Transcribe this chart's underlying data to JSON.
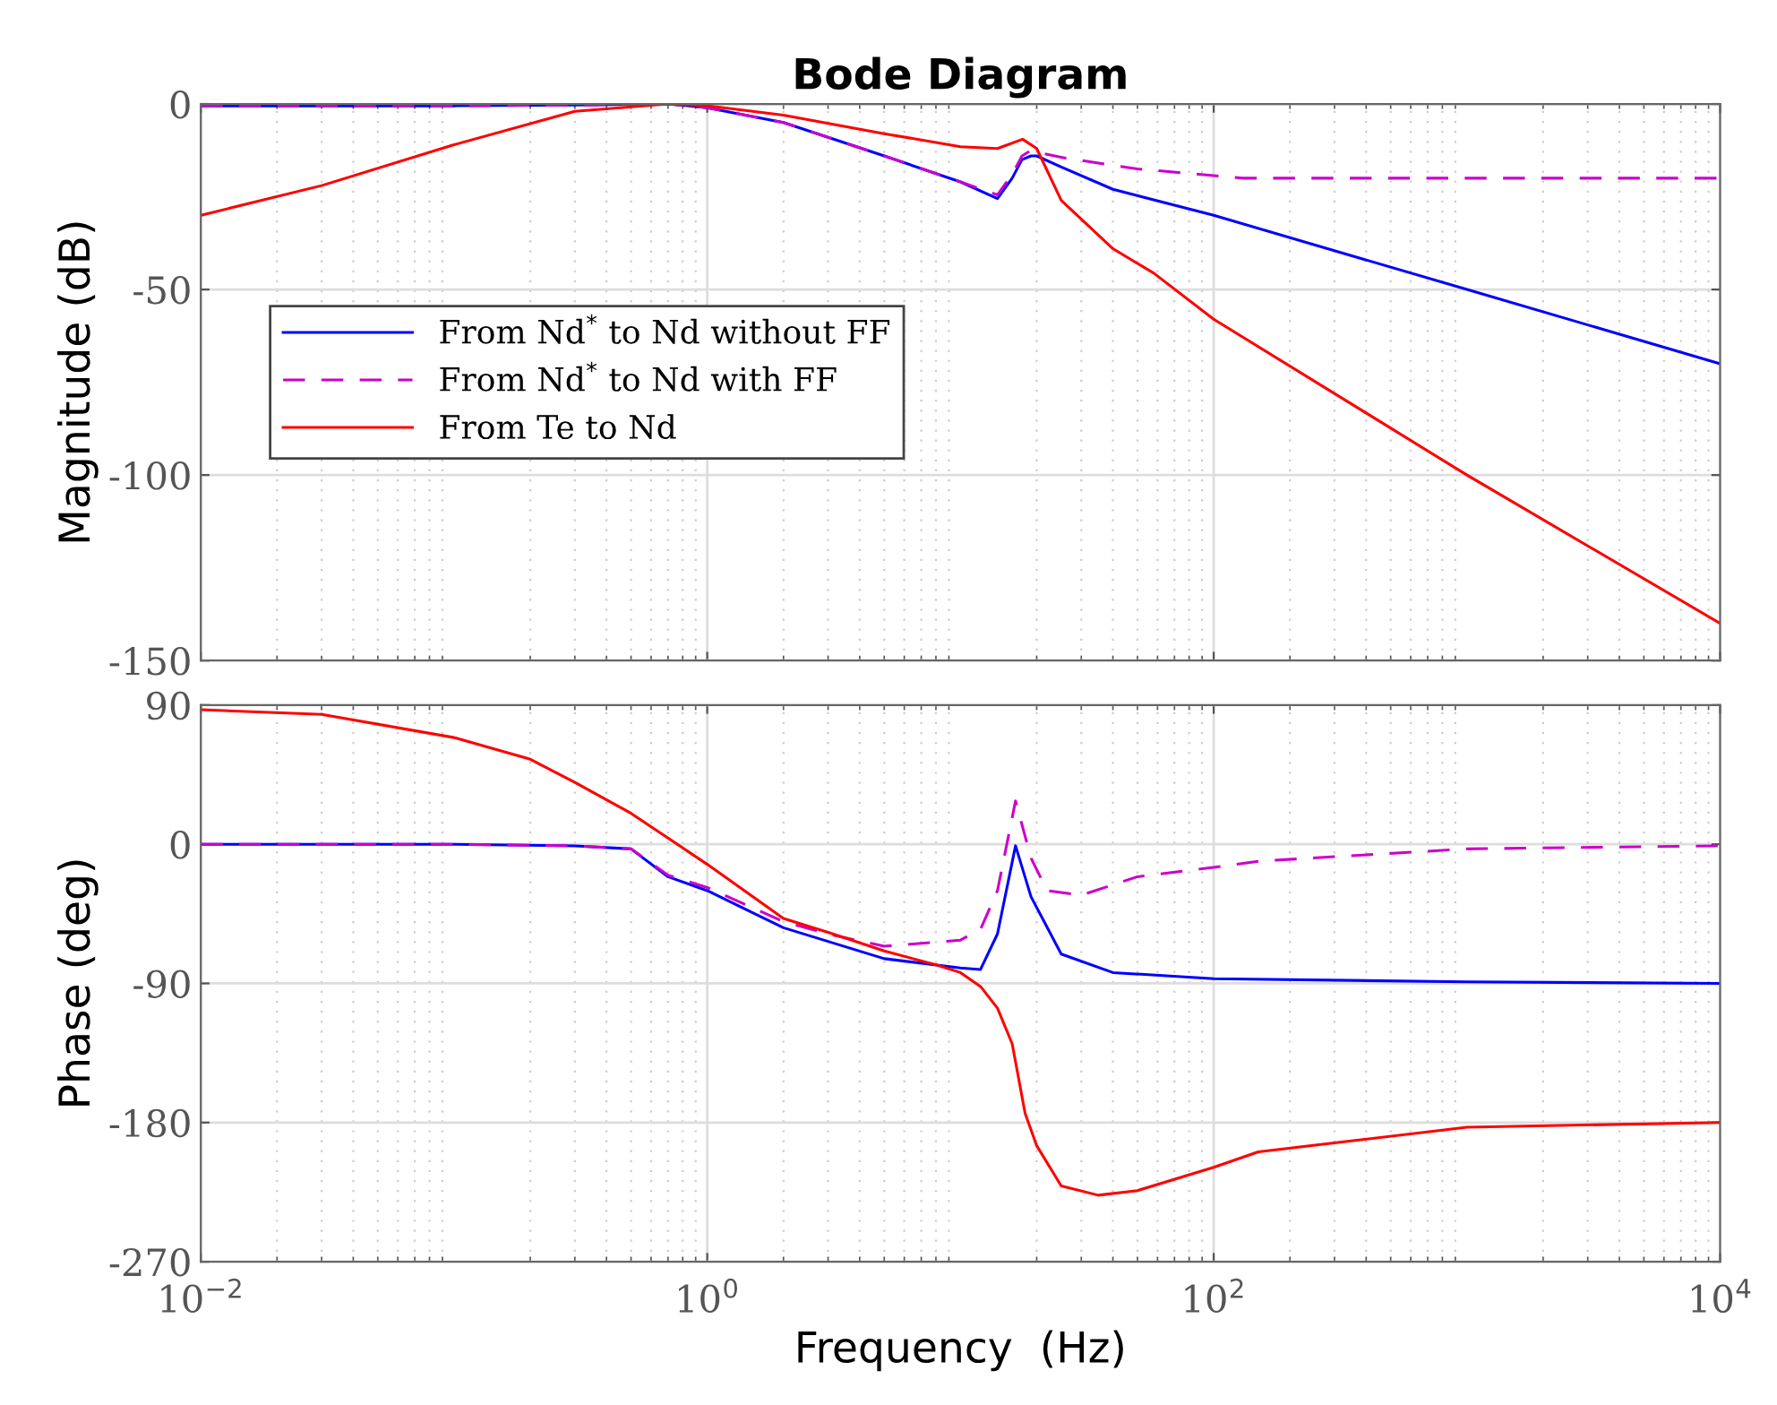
{
  "chart_data": [
    {
      "type": "line",
      "title": "Bode Diagram",
      "ylabel": "Magnitude (dB)",
      "log": "x",
      "grid": true,
      "legend": "left",
      "tick_labels": "y",
      "xlim": [
        0.01,
        10000
      ],
      "xticks": [
        {
          "value": 0.01,
          "label": null
        },
        {
          "value": 1,
          "label": null
        },
        {
          "value": 100,
          "label": null
        },
        {
          "value": 10000,
          "label": null
        }
      ],
      "ylim": [
        -150,
        0
      ],
      "yticks": [
        0,
        {
          "value": -50,
          "label": "-50"
        },
        {
          "value": -100,
          "label": "-100"
        },
        {
          "value": -150,
          "label": "-150"
        }
      ],
      "series": [
        {
          "name": "From Nd$^{*}$ to Nd without FF",
          "color": "#0000ff",
          "line_style": "solid",
          "x": [
            0.01,
            0.1,
            0.3,
            0.7,
            1,
            2,
            5,
            10,
            14,
            16,
            17.5,
            19,
            20,
            25,
            40,
            100,
            1000,
            10000
          ],
          "values": [
            -0.5,
            -0.5,
            -0.3,
            0,
            -1,
            -5,
            -14,
            -21,
            -25.5,
            -20,
            -15,
            -14,
            -14,
            -17,
            -23,
            -30,
            -50,
            -70
          ]
        },
        {
          "name": "From Nd$^{*}$ to Nd with FF",
          "color": "#cc00cc",
          "line_style": "dashed",
          "x": [
            0.01,
            0.1,
            0.3,
            0.7,
            1,
            2,
            5,
            10,
            14,
            16,
            17.5,
            19,
            20,
            26,
            50,
            130,
            1000,
            10000
          ],
          "values": [
            -0.5,
            -0.5,
            -0.3,
            0,
            -1,
            -5,
            -14,
            -21,
            -24.5,
            -19,
            -14,
            -12.5,
            -13,
            -14.6,
            -17.5,
            -20,
            -20,
            -20
          ]
        },
        {
          "name": "From Te to Nd",
          "color": "#ff0000",
          "line_style": "solid",
          "x": [
            0.01,
            0.03,
            0.1,
            0.3,
            0.7,
            1,
            2,
            5,
            10,
            14,
            17.6,
            20,
            25,
            40,
            58,
            100,
            1000,
            10000
          ],
          "values": [
            -30,
            -22,
            -11,
            -2,
            0,
            -0.5,
            -3,
            -8,
            -11.5,
            -12,
            -9.5,
            -12,
            -26,
            -39,
            -45.6,
            -58,
            -100,
            -140
          ]
        }
      ]
    },
    {
      "type": "line",
      "xlabel": "Frequency  (Hz)",
      "ylabel": "Phase (deg)",
      "log": "x",
      "grid": true,
      "xlim": [
        0.01,
        10000
      ],
      "xticks": [
        {
          "value": 0.01,
          "label": "10$^{−2}$"
        },
        {
          "value": 1,
          "label": "10$^{0}$"
        },
        {
          "value": 100,
          "label": "10$^{2}$"
        },
        {
          "value": 10000,
          "label": "10$^{4}$"
        }
      ],
      "ylim": [
        -270,
        90
      ],
      "yticks": [
        90,
        0,
        {
          "value": -90,
          "label": "-90"
        },
        {
          "value": -180,
          "label": "-180"
        },
        {
          "value": -270,
          "label": "-270"
        }
      ],
      "series": [
        {
          "color": "#0000ff",
          "line_style": "solid",
          "x": [
            0.01,
            0.1,
            0.3,
            0.5,
            0.7,
            1,
            2,
            5,
            10,
            12,
            14,
            16.5,
            19,
            25,
            40,
            100,
            1000,
            10000
          ],
          "values": [
            0,
            0,
            -1,
            -3,
            -21,
            -30,
            -54,
            -74,
            -80,
            -81,
            -58,
            -1,
            -34,
            -71,
            -83,
            -87,
            -89,
            -90
          ]
        },
        {
          "color": "#cc00cc",
          "line_style": "dashed",
          "x": [
            0.01,
            0.1,
            0.3,
            0.5,
            0.7,
            1,
            2,
            3,
            5,
            10,
            12,
            14,
            16.5,
            19,
            22,
            30,
            50,
            100,
            150,
            1000,
            10000
          ],
          "values": [
            0,
            0,
            -1,
            -3,
            -20,
            -28,
            -50,
            -58,
            -66,
            -62,
            -55,
            -30,
            28,
            -9,
            -30,
            -33,
            -21,
            -15,
            -11,
            -3,
            -1
          ]
        },
        {
          "color": "#ff0000",
          "line_style": "solid",
          "x": [
            0.01,
            0.03,
            0.1,
            0.2,
            0.3,
            0.5,
            0.7,
            1,
            2,
            3,
            5,
            8,
            10,
            12,
            14,
            16,
            18,
            20,
            25,
            35,
            50,
            100,
            150,
            1000,
            10000
          ],
          "values": [
            87,
            84,
            69,
            55,
            40,
            20,
            4,
            -13,
            -48,
            -57,
            -69,
            -78,
            -83,
            -92,
            -106,
            -129,
            -174,
            -195,
            -221,
            -227,
            -224,
            -209,
            -199,
            -183,
            -180
          ]
        }
      ]
    }
  ]
}
